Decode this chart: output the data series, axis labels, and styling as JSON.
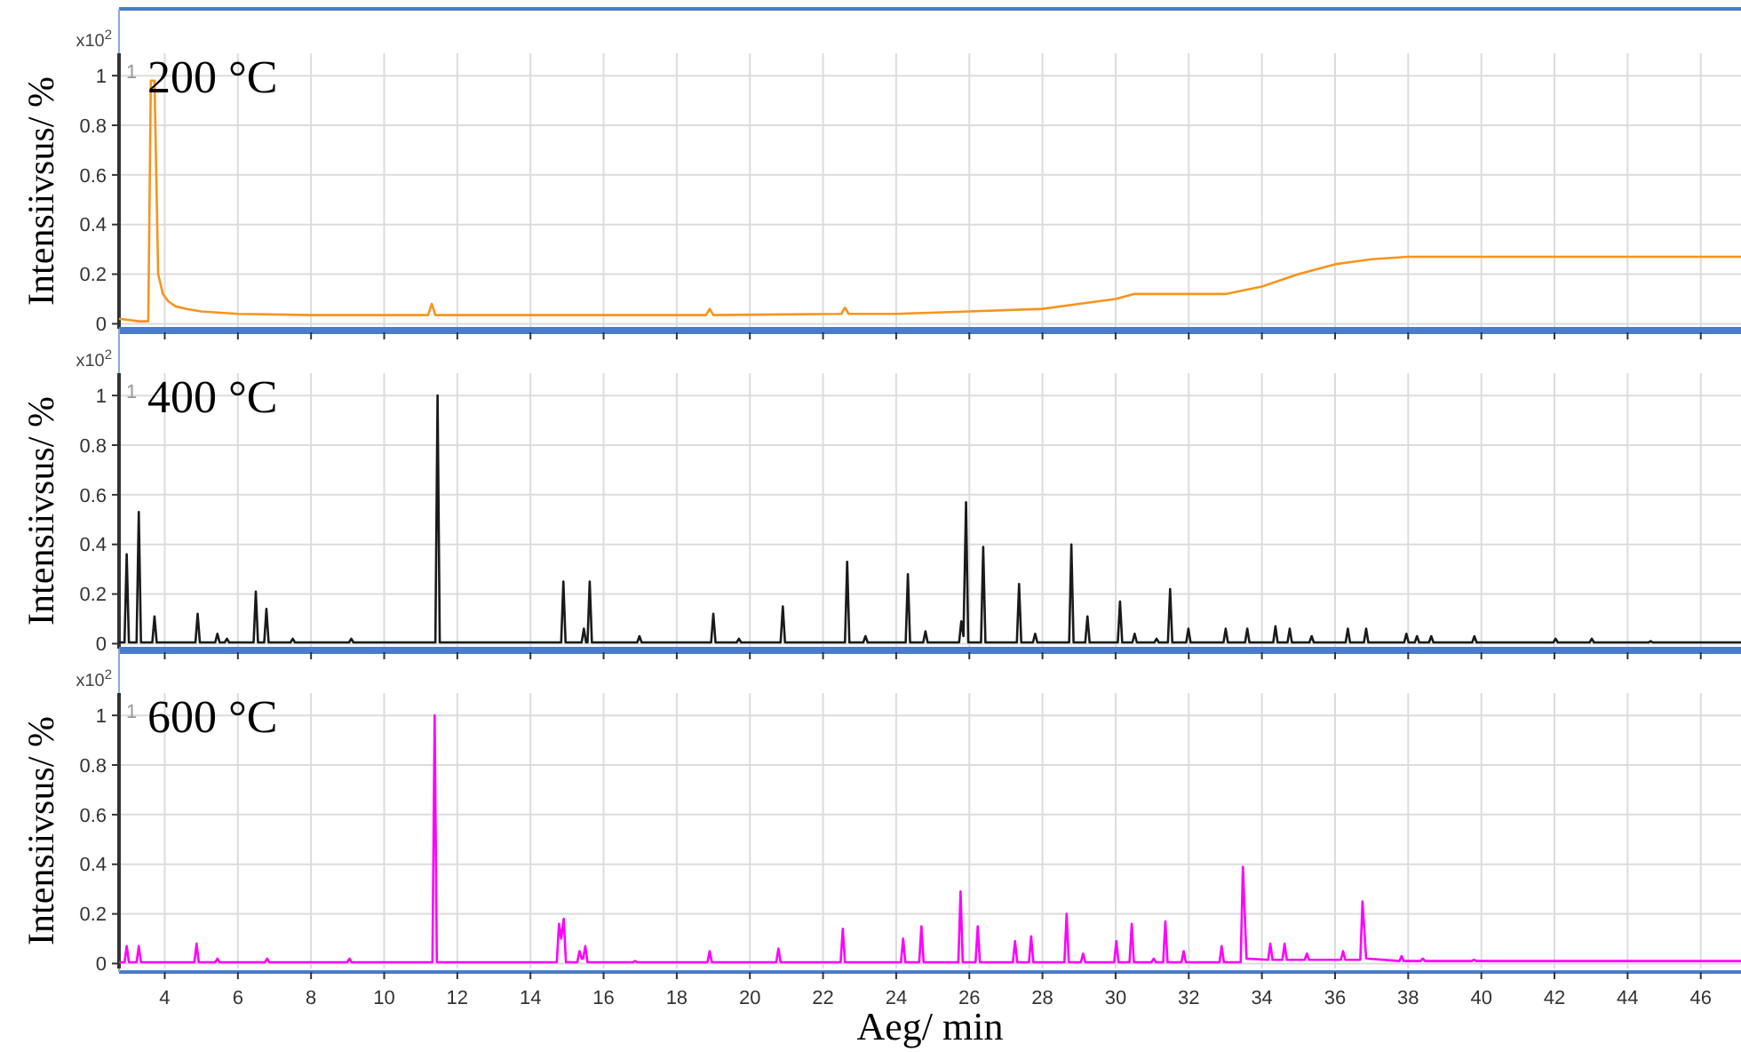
{
  "chart_data": [
    {
      "type": "line",
      "title": "200 °C",
      "ylabel": "Intensiivsus/ %",
      "annotations": [
        "x10$^{2}$",
        "1"
      ],
      "xlim": [
        2.75,
        47.1
      ],
      "xticks": [
        4,
        6,
        8,
        10,
        12,
        14,
        16,
        18,
        20,
        22,
        24,
        26,
        28,
        30,
        32,
        34,
        36,
        38,
        40,
        42,
        44,
        46
      ],
      "ylim": [
        -0.02,
        1.09
      ],
      "yticks": [
        0,
        0.2,
        0.4,
        0.6,
        0.8,
        1
      ],
      "grid": true,
      "tick_labels": "y",
      "series": [
        {
          "color": "#f7941d",
          "x": [
            2.75,
            3.3,
            3.55,
            3.62,
            3.72,
            3.82,
            3.95,
            4.1,
            4.3,
            4.6,
            5,
            6,
            8,
            11.2,
            11.3,
            11.4,
            15,
            18.8,
            18.9,
            19,
            22.5,
            22.6,
            22.7,
            24,
            26,
            28,
            29,
            30,
            30.5,
            33,
            34,
            35,
            36,
            37,
            38,
            42,
            47.1
          ],
          "values": [
            0.02,
            0.01,
            0.01,
            0.98,
            0.98,
            0.2,
            0.12,
            0.09,
            0.07,
            0.06,
            0.05,
            0.04,
            0.035,
            0.035,
            0.08,
            0.035,
            0.035,
            0.035,
            0.06,
            0.035,
            0.04,
            0.065,
            0.04,
            0.04,
            0.05,
            0.06,
            0.08,
            0.1,
            0.12,
            0.12,
            0.15,
            0.2,
            0.24,
            0.26,
            0.27,
            0.27,
            0.27
          ]
        }
      ]
    },
    {
      "type": "line",
      "title": "400 °C",
      "ylabel": "Intensiivsus/ %",
      "annotations": [
        "x10$^{2}$",
        "1"
      ],
      "xlim": [
        2.75,
        47.1
      ],
      "xticks": [
        4,
        6,
        8,
        10,
        12,
        14,
        16,
        18,
        20,
        22,
        24,
        26,
        28,
        30,
        32,
        34,
        36,
        38,
        40,
        42,
        44,
        46
      ],
      "ylim": [
        -0.02,
        1.09
      ],
      "yticks": [
        0,
        0.2,
        0.4,
        0.6,
        0.8,
        1
      ],
      "grid": true,
      "tick_labels": "y",
      "series": [
        {
          "color": "#1a1a1a",
          "x": [
            2.75,
            2.9,
            2.96,
            3.02,
            3.23,
            3.29,
            3.35,
            3.66,
            3.72,
            3.78,
            4.84,
            4.9,
            4.96,
            5.38,
            5.44,
            5.5,
            5.64,
            5.7,
            5.76,
            6.43,
            6.49,
            6.55,
            6.72,
            6.78,
            6.84,
            7.44,
            7.5,
            7.56,
            9.04,
            9.1,
            9.16,
            11.4,
            11.46,
            11.52,
            14.84,
            14.9,
            14.96,
            15.4,
            15.46,
            15.52,
            15.56,
            15.62,
            15.68,
            16.92,
            16.98,
            17.04,
            18.94,
            19,
            19.06,
            19.64,
            19.7,
            19.76,
            20.84,
            20.9,
            20.96,
            22.6,
            22.66,
            22.72,
            23.1,
            23.16,
            23.22,
            24.26,
            24.32,
            24.38,
            24.74,
            24.8,
            24.86,
            25.72,
            25.78,
            25.84,
            25.91,
            25.97,
            26.32,
            26.38,
            26.44,
            27.3,
            27.36,
            27.42,
            27.74,
            27.8,
            27.86,
            28.73,
            28.79,
            28.85,
            29.17,
            29.23,
            29.29,
            30.06,
            30.12,
            30.18,
            30.46,
            30.52,
            30.58,
            31.06,
            31.12,
            31.18,
            31.43,
            31.49,
            31.55,
            31.93,
            31.99,
            32.05,
            32.95,
            33.01,
            33.07,
            33.54,
            33.6,
            33.66,
            34.31,
            34.37,
            34.43,
            34.7,
            34.76,
            34.82,
            35.3,
            35.36,
            35.42,
            36.29,
            36.35,
            36.41,
            36.79,
            36.85,
            36.91,
            37.89,
            37.95,
            38.01,
            38.18,
            38.24,
            38.3,
            38.57,
            38.63,
            38.69,
            39.75,
            39.81,
            39.87,
            41.97,
            42.03,
            42.09,
            42.96,
            43.02,
            43.08,
            44.57,
            44.63,
            44.69,
            47.1
          ],
          "values": [
            0.005,
            0.005,
            0.36,
            0.005,
            0.005,
            0.53,
            0.005,
            0.005,
            0.11,
            0.005,
            0.005,
            0.12,
            0.005,
            0.005,
            0.04,
            0.005,
            0.005,
            0.02,
            0.005,
            0.005,
            0.21,
            0.005,
            0.005,
            0.14,
            0.005,
            0.005,
            0.02,
            0.005,
            0.005,
            0.02,
            0.005,
            0.005,
            1,
            0.005,
            0.005,
            0.25,
            0.005,
            0.005,
            0.06,
            0.005,
            0.005,
            0.25,
            0.005,
            0.005,
            0.03,
            0.005,
            0.005,
            0.12,
            0.005,
            0.005,
            0.02,
            0.005,
            0.005,
            0.15,
            0.005,
            0.005,
            0.33,
            0.005,
            0.005,
            0.03,
            0.005,
            0.005,
            0.28,
            0.005,
            0.005,
            0.05,
            0.005,
            0.005,
            0.09,
            0.03,
            0.57,
            0.005,
            0.005,
            0.39,
            0.005,
            0.005,
            0.24,
            0.005,
            0.005,
            0.04,
            0.005,
            0.005,
            0.4,
            0.005,
            0.005,
            0.11,
            0.005,
            0.005,
            0.17,
            0.005,
            0.005,
            0.04,
            0.005,
            0.005,
            0.02,
            0.005,
            0.005,
            0.22,
            0.005,
            0.005,
            0.06,
            0.005,
            0.005,
            0.06,
            0.005,
            0.005,
            0.06,
            0.005,
            0.005,
            0.07,
            0.005,
            0.005,
            0.06,
            0.005,
            0.005,
            0.03,
            0.005,
            0.005,
            0.06,
            0.005,
            0.005,
            0.06,
            0.005,
            0.005,
            0.04,
            0.005,
            0.005,
            0.03,
            0.005,
            0.005,
            0.03,
            0.005,
            0.005,
            0.03,
            0.005,
            0.005,
            0.02,
            0.005,
            0.005,
            0.02,
            0.005,
            0.005,
            0.01,
            0.005,
            0.005
          ]
        }
      ]
    },
    {
      "type": "line",
      "title": "600 °C",
      "xlabel": "Aeg/ min",
      "ylabel": "Intensiivsus/ %",
      "annotations": [
        "x10$^{2}$",
        "1"
      ],
      "xlim": [
        2.75,
        47.1
      ],
      "xticks": [
        4,
        6,
        8,
        10,
        12,
        14,
        16,
        18,
        20,
        22,
        24,
        26,
        28,
        30,
        32,
        34,
        36,
        38,
        40,
        42,
        44,
        46
      ],
      "ylim": [
        -0.02,
        1.09
      ],
      "yticks": [
        0,
        0.2,
        0.4,
        0.6,
        0.8,
        1
      ],
      "grid": true,
      "series": [
        {
          "color": "#ff00ff",
          "x": [
            2.75,
            2.9,
            2.96,
            3.02,
            3.23,
            3.29,
            3.35,
            4.81,
            4.87,
            4.93,
            5.38,
            5.44,
            5.5,
            6.74,
            6.8,
            6.86,
            8.99,
            9.05,
            9.11,
            11.32,
            11.38,
            11.44,
            14.72,
            14.78,
            14.84,
            14.91,
            14.97,
            15.28,
            15.34,
            15.4,
            15.44,
            15.5,
            15.56,
            16.8,
            16.86,
            16.92,
            18.84,
            18.9,
            18.96,
            20.72,
            20.78,
            20.84,
            22.48,
            22.54,
            22.6,
            24.13,
            24.19,
            24.25,
            24.63,
            24.69,
            24.75,
            25.7,
            25.76,
            25.82,
            26.17,
            26.23,
            26.29,
            27.19,
            27.25,
            27.31,
            27.63,
            27.69,
            27.75,
            28.6,
            28.66,
            28.72,
            29.05,
            29.11,
            29.17,
            29.96,
            30.02,
            30.08,
            30.38,
            30.44,
            30.5,
            30.98,
            31.04,
            31.1,
            31.3,
            31.36,
            31.42,
            31.8,
            31.86,
            31.92,
            32.84,
            32.9,
            32.96,
            33.42,
            33.48,
            33.58,
            34.17,
            34.23,
            34.29,
            34.56,
            34.62,
            34.68,
            35.17,
            35.23,
            35.29,
            36.16,
            36.22,
            36.28,
            36.69,
            36.75,
            36.85,
            37.76,
            37.82,
            37.88,
            38.34,
            38.4,
            38.46,
            39.74,
            39.8,
            39.86,
            47.1
          ],
          "values": [
            0.005,
            0.005,
            0.07,
            0.005,
            0.005,
            0.07,
            0.005,
            0.005,
            0.08,
            0.005,
            0.005,
            0.02,
            0.005,
            0.005,
            0.02,
            0.005,
            0.005,
            0.02,
            0.005,
            0.005,
            1,
            0.005,
            0.005,
            0.16,
            0.1,
            0.18,
            0.005,
            0.005,
            0.05,
            0.02,
            0.02,
            0.07,
            0.005,
            0.005,
            0.01,
            0.005,
            0.005,
            0.05,
            0.005,
            0.005,
            0.06,
            0.005,
            0.005,
            0.14,
            0.005,
            0.005,
            0.1,
            0.005,
            0.005,
            0.15,
            0.005,
            0.005,
            0.29,
            0.005,
            0.005,
            0.15,
            0.005,
            0.005,
            0.09,
            0.005,
            0.005,
            0.11,
            0.005,
            0.005,
            0.2,
            0.005,
            0.005,
            0.04,
            0.005,
            0.005,
            0.09,
            0.005,
            0.005,
            0.16,
            0.005,
            0.005,
            0.02,
            0.005,
            0.005,
            0.17,
            0.005,
            0.005,
            0.05,
            0.005,
            0.005,
            0.07,
            0.005,
            0.005,
            0.39,
            0.02,
            0.015,
            0.08,
            0.015,
            0.015,
            0.08,
            0.015,
            0.015,
            0.04,
            0.015,
            0.015,
            0.05,
            0.015,
            0.015,
            0.25,
            0.02,
            0.01,
            0.03,
            0.01,
            0.01,
            0.02,
            0.01,
            0.01,
            0.015,
            0.01,
            0.01
          ]
        }
      ]
    }
  ]
}
